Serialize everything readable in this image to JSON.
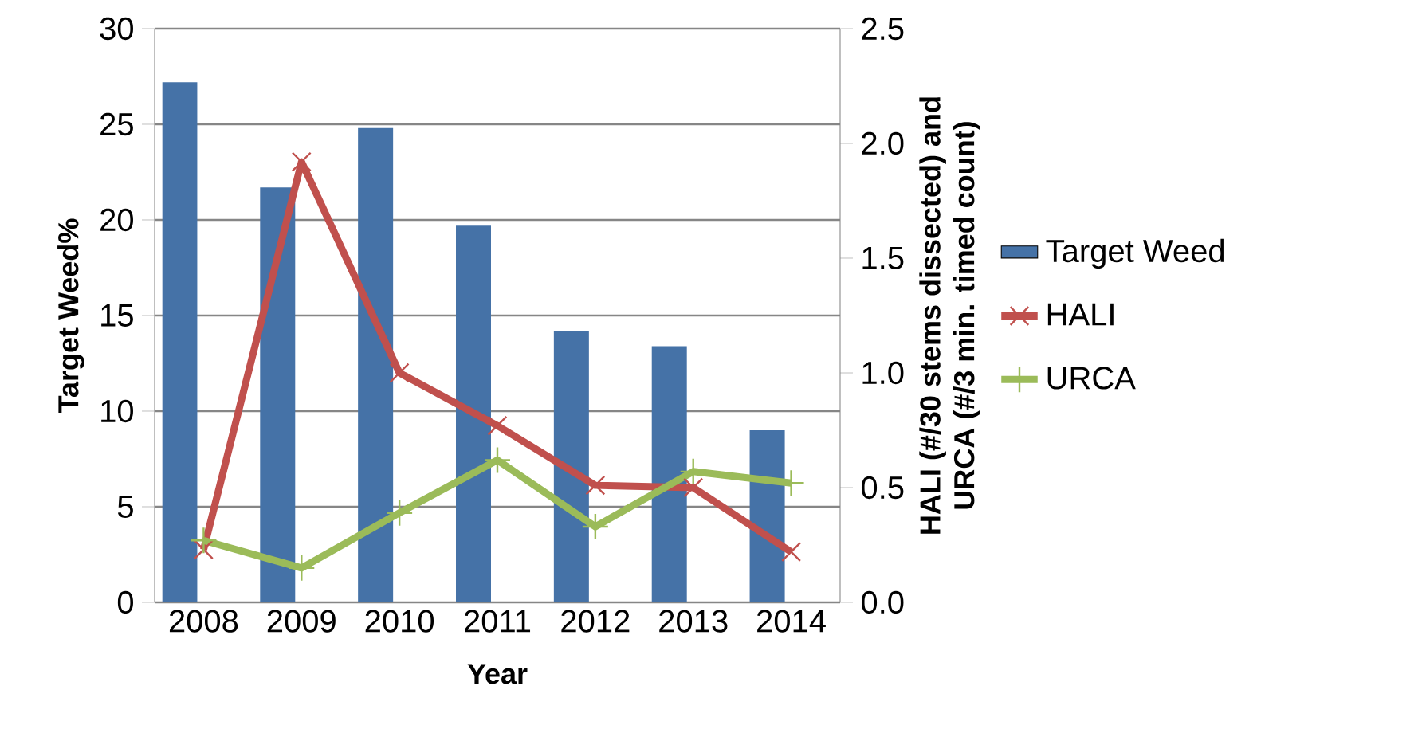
{
  "chart_data": {
    "type": "bar",
    "xlabel": "Year",
    "ylabel": "Target Weed%",
    "y2label": "HALI (#/30 stems dissected) and\nURCA (#/3 min. timed count)",
    "categories": [
      "2008",
      "2009",
      "2010",
      "2011",
      "2012",
      "2013",
      "2014"
    ],
    "series": [
      {
        "name": "Target Weed",
        "color": "#4572a7",
        "values": [
          27.2,
          21.7,
          24.8,
          19.7,
          14.2,
          13.4,
          9.0
        ]
      },
      {
        "name": "HALI",
        "type": "line",
        "axis": "y2",
        "color": "#c0504d",
        "marker": "cross",
        "values": [
          0.23,
          1.92,
          1.0,
          0.77,
          0.51,
          0.5,
          0.22
        ]
      },
      {
        "name": "URCA",
        "type": "line",
        "axis": "y2",
        "color": "#9bbb59",
        "marker": "plus",
        "values": [
          0.27,
          0.15,
          0.39,
          0.62,
          0.33,
          0.57,
          0.52
        ]
      }
    ],
    "ylim": [
      0,
      30
    ],
    "yticks": [
      0,
      5,
      10,
      15,
      20,
      25,
      30
    ],
    "y2lim": [
      0,
      2.5
    ],
    "y2ticks": [
      {
        "value": 0,
        "label": "0.0"
      },
      {
        "value": 0.5,
        "label": "0.5"
      },
      {
        "value": 1,
        "label": "1.0"
      },
      {
        "value": 1.5,
        "label": "1.5"
      },
      {
        "value": 2,
        "label": "2.0"
      },
      {
        "value": 2.5,
        "label": "2.5"
      }
    ],
    "grid": "y",
    "legend": "right"
  }
}
